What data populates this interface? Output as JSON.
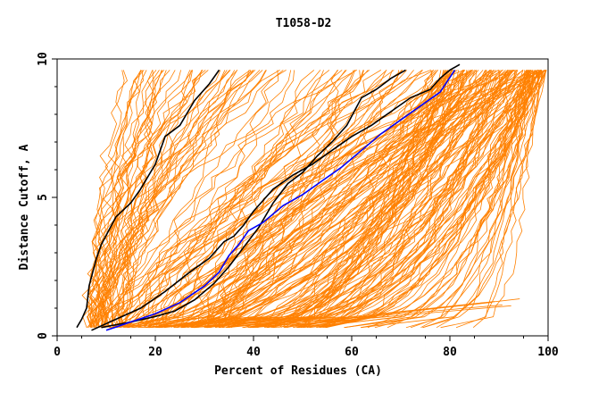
{
  "chart_data": {
    "type": "line",
    "title": "T1058-D2",
    "xlabel": "Percent of Residues (CA)",
    "ylabel": "Distance Cutoff, A",
    "xlim": [
      0,
      100
    ],
    "ylim": [
      0,
      10
    ],
    "xticks": [
      0,
      20,
      40,
      60,
      80,
      100
    ],
    "yticks": [
      0,
      5,
      10
    ],
    "grid": false,
    "legend": "none",
    "colors": {
      "background_curves": "#ff8000",
      "highlight_black": "#000000",
      "highlight_blue": "#0000ff"
    },
    "series": [
      {
        "color": "#000000",
        "x": [
          4,
          5,
          6,
          6.5,
          8,
          9,
          12,
          15,
          17,
          20,
          22,
          25,
          28,
          31,
          33
        ],
        "y": [
          0.3,
          0.6,
          1,
          1.8,
          2.8,
          3.3,
          4.3,
          4.8,
          5.3,
          6.2,
          7.2,
          7.6,
          8.5,
          9.1,
          9.6
        ]
      },
      {
        "color": "#000000",
        "x": [
          9,
          15,
          20,
          24,
          28,
          32,
          35,
          38,
          41,
          44,
          47,
          50,
          53,
          56,
          59,
          62,
          65,
          68,
          71
        ],
        "y": [
          0.3,
          0.5,
          0.7,
          0.9,
          1.3,
          1.9,
          2.5,
          3.2,
          3.9,
          4.8,
          5.5,
          5.9,
          6.5,
          7.0,
          7.6,
          8.6,
          8.9,
          9.3,
          9.6
        ]
      },
      {
        "color": "#000000",
        "x": [
          7,
          12,
          17,
          22,
          27,
          31,
          34,
          36,
          38,
          40,
          44,
          48,
          52,
          56,
          60,
          64,
          68,
          72,
          76,
          78,
          80,
          82
        ],
        "y": [
          0.2,
          0.6,
          1.0,
          1.6,
          2.3,
          2.8,
          3.4,
          3.6,
          4.0,
          4.5,
          5.3,
          5.8,
          6.2,
          6.7,
          7.2,
          7.6,
          8.1,
          8.6,
          8.9,
          9.3,
          9.6,
          9.8
        ]
      },
      {
        "color": "#0000ff",
        "x": [
          10,
          15,
          20,
          25,
          30,
          33,
          35,
          37,
          39,
          42,
          46,
          50,
          54,
          58,
          62,
          66,
          70,
          74,
          78,
          81
        ],
        "y": [
          0.2,
          0.5,
          0.8,
          1.2,
          1.8,
          2.3,
          2.9,
          3.3,
          3.8,
          4.1,
          4.7,
          5.1,
          5.6,
          6.1,
          6.7,
          7.3,
          7.8,
          8.3,
          8.8,
          9.6
        ]
      }
    ]
  }
}
